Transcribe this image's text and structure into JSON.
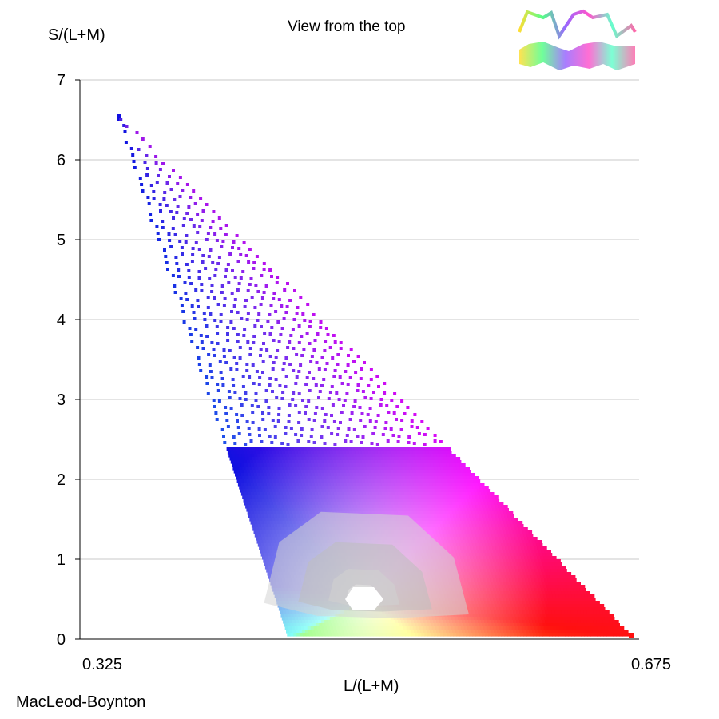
{
  "chart_data": {
    "type": "scatter",
    "title": "View from the top",
    "xlabel": "L/(L+M)",
    "ylabel": "S/(L+M)",
    "caption": "MacLeod-Boynton",
    "xlim": [
      0.325,
      0.675
    ],
    "ylim": [
      0,
      7
    ],
    "x_tick_labels": [
      "0.325",
      "0.675"
    ],
    "y_tick_labels": [
      "0",
      "1",
      "2",
      "3",
      "4",
      "5",
      "6",
      "7"
    ],
    "y_ticks": [
      0,
      1,
      2,
      3,
      4,
      5,
      6,
      7
    ],
    "grid": "horizontal",
    "gamut_vertices": [
      {
        "name": "blue",
        "x": 0.349,
        "y": 6.55
      },
      {
        "name": "cyan",
        "x": 0.455,
        "y": 0.06
      },
      {
        "name": "green",
        "x": 0.46,
        "y": 0.04
      },
      {
        "name": "yellow",
        "x": 0.535,
        "y": 0.03
      },
      {
        "name": "red",
        "x": 0.67,
        "y": 0.05
      },
      {
        "name": "magenta",
        "x": 0.575,
        "y": 2.0
      }
    ],
    "white_point": {
      "x": 0.502,
      "y": 0.5
    },
    "vertex_colors": {
      "blue": "#1010e0",
      "cyan": "#00ffee",
      "green": "#33ff00",
      "yellow": "#ffff00",
      "red": "#ff1010",
      "magenta": "#ff00ff",
      "violet": "#9a18e8",
      "white": "#ffffff"
    }
  }
}
